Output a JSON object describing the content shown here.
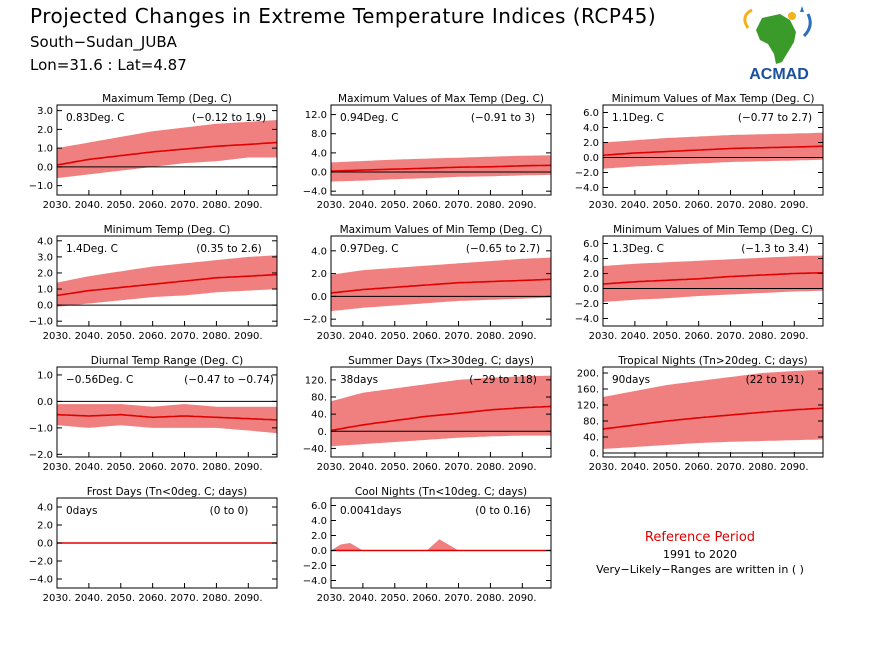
{
  "header": {
    "title": "Projected Changes in Extreme Temperature Indices (RCP45)",
    "subtitle": "South−Sudan_JUBA",
    "location": "Lon=31.6 : Lat=4.87"
  },
  "logo": {
    "text": "ACMAD",
    "icon": "africa-map-logo"
  },
  "reference": {
    "title": "Reference Period",
    "years": "1991 to 2020",
    "note": "Very−Likely−Ranges are written in ( )"
  },
  "colors": {
    "band": "#f08080",
    "line": "#e00000",
    "zero": "#000000"
  },
  "chart_data": [
    {
      "type": "area",
      "title": "Maximum Temp (Deg. C)",
      "value_text": "0.83Deg. C",
      "range_text": "(−0.12 to 1.9)",
      "ylim": [
        -1.5,
        3.3
      ],
      "yticks": [
        -1,
        0,
        1,
        2,
        3
      ],
      "ytick_labels": [
        "−1.0",
        "0.0",
        "1.0",
        "2.0",
        "3.0"
      ],
      "xticks": [
        2030,
        2040,
        2050,
        2060,
        2070,
        2080,
        2090
      ],
      "xtick_labels": [
        "2030.",
        "2040.",
        "2050.",
        "2060.",
        "2070.",
        "2080.",
        "2090."
      ],
      "x": [
        2030,
        2040,
        2050,
        2060,
        2070,
        2080,
        2090,
        2099
      ],
      "median": [
        0.1,
        0.4,
        0.6,
        0.8,
        0.95,
        1.1,
        1.2,
        1.3
      ],
      "low": [
        -0.6,
        -0.4,
        -0.2,
        0.0,
        0.2,
        0.3,
        0.5,
        0.5
      ],
      "high": [
        1.0,
        1.3,
        1.6,
        1.9,
        2.1,
        2.3,
        2.4,
        2.5
      ]
    },
    {
      "type": "area",
      "title": "Maximum Values of Max Temp (Deg. C)",
      "value_text": "0.94Deg. C",
      "range_text": "(−0.91 to 3)",
      "ylim": [
        -4.8,
        14
      ],
      "yticks": [
        -4,
        0,
        4,
        8,
        12
      ],
      "ytick_labels": [
        "−4.0",
        "0.0",
        "4.0",
        "8.0",
        "12.0"
      ],
      "xticks": [
        2030,
        2040,
        2050,
        2060,
        2070,
        2080,
        2090
      ],
      "xtick_labels": [
        "2030.",
        "2040.",
        "2050.",
        "2060.",
        "2070.",
        "2080.",
        "2090."
      ],
      "x": [
        2030,
        2040,
        2050,
        2060,
        2070,
        2080,
        2090,
        2099
      ],
      "median": [
        0.2,
        0.4,
        0.6,
        0.8,
        1.0,
        1.1,
        1.3,
        1.4
      ],
      "low": [
        -2.0,
        -1.8,
        -1.5,
        -1.3,
        -1.0,
        -0.9,
        -0.7,
        -0.6
      ],
      "high": [
        2.0,
        2.3,
        2.6,
        2.8,
        3.0,
        3.2,
        3.4,
        3.5
      ]
    },
    {
      "type": "area",
      "title": "Minimum Values of Max Temp (Deg. C)",
      "value_text": "1.1Deg. C",
      "range_text": "(−0.77 to 2.7)",
      "ylim": [
        -5,
        7
      ],
      "yticks": [
        -4,
        -2,
        0,
        2,
        4,
        6
      ],
      "ytick_labels": [
        "−4.0",
        "−2.0",
        "0.0",
        "2.0",
        "4.0",
        "6.0"
      ],
      "xticks": [
        2030,
        2040,
        2050,
        2060,
        2070,
        2080,
        2090
      ],
      "xtick_labels": [
        "2030.",
        "2040.",
        "2050.",
        "2060.",
        "2070.",
        "2080.",
        "2090."
      ],
      "x": [
        2030,
        2040,
        2050,
        2060,
        2070,
        2080,
        2090,
        2099
      ],
      "median": [
        0.3,
        0.6,
        0.8,
        1.0,
        1.2,
        1.3,
        1.4,
        1.5
      ],
      "low": [
        -1.5,
        -1.2,
        -1.0,
        -0.8,
        -0.6,
        -0.5,
        -0.4,
        -0.3
      ],
      "high": [
        2.0,
        2.3,
        2.6,
        2.8,
        3.0,
        3.1,
        3.2,
        3.3
      ]
    },
    {
      "type": "area",
      "title": "Minimum Temp (Deg. C)",
      "value_text": "1.4Deg. C",
      "range_text": "(0.35 to 2.6)",
      "ylim": [
        -1.3,
        4.3
      ],
      "yticks": [
        -1,
        0,
        1,
        2,
        3,
        4
      ],
      "ytick_labels": [
        "−1.0",
        "0.0",
        "1.0",
        "2.0",
        "3.0",
        "4.0"
      ],
      "xticks": [
        2030,
        2040,
        2050,
        2060,
        2070,
        2080,
        2090
      ],
      "xtick_labels": [
        "2030.",
        "2040.",
        "2050.",
        "2060.",
        "2070.",
        "2080.",
        "2090."
      ],
      "x": [
        2030,
        2040,
        2050,
        2060,
        2070,
        2080,
        2090,
        2099
      ],
      "median": [
        0.6,
        0.9,
        1.1,
        1.3,
        1.5,
        1.7,
        1.8,
        1.9
      ],
      "low": [
        -0.1,
        0.1,
        0.3,
        0.5,
        0.6,
        0.8,
        0.9,
        1.0
      ],
      "high": [
        1.4,
        1.8,
        2.1,
        2.4,
        2.6,
        2.8,
        3.0,
        3.1
      ]
    },
    {
      "type": "area",
      "title": "Maximum Values of Min Temp (Deg. C)",
      "value_text": "0.97Deg. C",
      "range_text": "(−0.65 to 2.7)",
      "ylim": [
        -2.6,
        5.3
      ],
      "yticks": [
        -2,
        0,
        2,
        4
      ],
      "ytick_labels": [
        "−2.0",
        "0.0",
        "2.0",
        "4.0"
      ],
      "xticks": [
        2030,
        2040,
        2050,
        2060,
        2070,
        2080,
        2090
      ],
      "xtick_labels": [
        "2030.",
        "2040.",
        "2050.",
        "2060.",
        "2070.",
        "2080.",
        "2090."
      ],
      "x": [
        2030,
        2040,
        2050,
        2060,
        2070,
        2080,
        2090,
        2099
      ],
      "median": [
        0.3,
        0.6,
        0.8,
        1.0,
        1.2,
        1.3,
        1.4,
        1.5
      ],
      "low": [
        -1.3,
        -1.0,
        -0.8,
        -0.6,
        -0.4,
        -0.3,
        -0.2,
        -0.1
      ],
      "high": [
        1.9,
        2.3,
        2.5,
        2.7,
        2.9,
        3.1,
        3.3,
        3.4
      ]
    },
    {
      "type": "area",
      "title": "Minimum Values of Min Temp (Deg. C)",
      "value_text": "1.3Deg. C",
      "range_text": "(−1.3 to 3.4)",
      "ylim": [
        -5,
        7
      ],
      "yticks": [
        -4,
        -2,
        0,
        2,
        4,
        6
      ],
      "ytick_labels": [
        "−4.0",
        "−2.0",
        "0.0",
        "2.0",
        "4.0",
        "6.0"
      ],
      "xticks": [
        2030,
        2040,
        2050,
        2060,
        2070,
        2080,
        2090
      ],
      "xtick_labels": [
        "2030.",
        "2040.",
        "2050.",
        "2060.",
        "2070.",
        "2080.",
        "2090."
      ],
      "x": [
        2030,
        2040,
        2050,
        2060,
        2070,
        2080,
        2090,
        2099
      ],
      "median": [
        0.6,
        0.9,
        1.1,
        1.3,
        1.6,
        1.8,
        2.0,
        2.1
      ],
      "low": [
        -1.8,
        -1.5,
        -1.3,
        -1.0,
        -0.8,
        -0.6,
        -0.4,
        -0.3
      ],
      "high": [
        3.0,
        3.3,
        3.5,
        3.7,
        3.9,
        4.1,
        4.3,
        4.4
      ]
    },
    {
      "type": "area",
      "title": "Diurnal Temp Range (Deg. C)",
      "value_text": "−0.56Deg. C",
      "range_text": "(−0.47 to −0.74)",
      "ylim": [
        -2.1,
        1.3
      ],
      "yticks": [
        -2,
        -1,
        0,
        1
      ],
      "ytick_labels": [
        "−2.0",
        "−1.0",
        "0.0",
        "1.0"
      ],
      "xticks": [
        2030,
        2040,
        2050,
        2060,
        2070,
        2080,
        2090
      ],
      "xtick_labels": [
        "2030.",
        "2040.",
        "2050.",
        "2060.",
        "2070.",
        "2080.",
        "2090."
      ],
      "x": [
        2030,
        2040,
        2050,
        2060,
        2070,
        2080,
        2090,
        2099
      ],
      "median": [
        -0.5,
        -0.55,
        -0.5,
        -0.6,
        -0.55,
        -0.6,
        -0.65,
        -0.7
      ],
      "low": [
        -0.9,
        -1.0,
        -0.9,
        -1.0,
        -1.0,
        -1.0,
        -1.1,
        -1.2
      ],
      "high": [
        -0.1,
        -0.1,
        -0.1,
        -0.2,
        -0.1,
        -0.2,
        -0.2,
        -0.2
      ]
    },
    {
      "type": "area",
      "title": "Summer Days (Tx>30deg. C; days)",
      "value_text": "38days",
      "range_text": "(−29 to 118)",
      "ylim": [
        -60,
        150
      ],
      "yticks": [
        -40,
        0,
        40,
        80,
        120
      ],
      "ytick_labels": [
        "−40.",
        "0.",
        "40.",
        "80.",
        "120."
      ],
      "xticks": [
        2030,
        2040,
        2050,
        2060,
        2070,
        2080,
        2090
      ],
      "xtick_labels": [
        "2030.",
        "2040.",
        "2050.",
        "2060.",
        "2070.",
        "2080.",
        "2090."
      ],
      "x": [
        2030,
        2040,
        2050,
        2060,
        2070,
        2080,
        2090,
        2099
      ],
      "median": [
        2,
        15,
        25,
        35,
        42,
        50,
        55,
        58
      ],
      "low": [
        -35,
        -30,
        -25,
        -20,
        -15,
        -12,
        -10,
        -10
      ],
      "high": [
        70,
        90,
        100,
        110,
        120,
        125,
        128,
        130
      ]
    },
    {
      "type": "area",
      "title": "Tropical Nights (Tn>20deg. C; days)",
      "value_text": "90days",
      "range_text": "(22 to 191)",
      "ylim": [
        -10,
        215
      ],
      "yticks": [
        0,
        40,
        80,
        120,
        160,
        200
      ],
      "ytick_labels": [
        "0.",
        "40.",
        "80.",
        "120.",
        "160.",
        "200."
      ],
      "xticks": [
        2030,
        2040,
        2050,
        2060,
        2070,
        2080,
        2090
      ],
      "xtick_labels": [
        "2030.",
        "2040.",
        "2050.",
        "2060.",
        "2070.",
        "2080.",
        "2090."
      ],
      "x": [
        2030,
        2040,
        2050,
        2060,
        2070,
        2080,
        2090,
        2099
      ],
      "median": [
        60,
        70,
        80,
        88,
        95,
        102,
        108,
        112
      ],
      "low": [
        10,
        15,
        20,
        25,
        28,
        30,
        32,
        34
      ],
      "high": [
        140,
        155,
        170,
        180,
        190,
        200,
        205,
        208
      ]
    },
    {
      "type": "area",
      "title": "Frost Days (Tn<0deg. C; days)",
      "value_text": "0days",
      "range_text": "(0 to 0)",
      "ylim": [
        -5,
        5
      ],
      "yticks": [
        -4,
        -2,
        0,
        2,
        4
      ],
      "ytick_labels": [
        "−4.0",
        "−2.0",
        "0.0",
        "2.0",
        "4.0"
      ],
      "xticks": [
        2030,
        2040,
        2050,
        2060,
        2070,
        2080,
        2090
      ],
      "xtick_labels": [
        "2030.",
        "2040.",
        "2050.",
        "2060.",
        "2070.",
        "2080.",
        "2090."
      ],
      "x": [
        2030,
        2099
      ],
      "median": [
        0,
        0
      ],
      "low": [
        0,
        0
      ],
      "high": [
        0,
        0
      ]
    },
    {
      "type": "area",
      "title": "Cool Nights (Tn<10deg. C; days)",
      "value_text": "0.0041days",
      "range_text": "(0 to 0.16)",
      "ylim": [
        -5,
        7
      ],
      "yticks": [
        -4,
        -2,
        0,
        2,
        4,
        6
      ],
      "ytick_labels": [
        "−4.0",
        "−2.0",
        "0.0",
        "2.0",
        "4.0",
        "6.0"
      ],
      "xticks": [
        2030,
        2040,
        2050,
        2060,
        2070,
        2080,
        2090
      ],
      "xtick_labels": [
        "2030.",
        "2040.",
        "2050.",
        "2060.",
        "2070.",
        "2080.",
        "2090."
      ],
      "x": [
        2030,
        2033,
        2036,
        2040,
        2060,
        2064,
        2070,
        2099
      ],
      "median": [
        0,
        0,
        0,
        0,
        0,
        0,
        0,
        0
      ],
      "low": [
        0,
        0,
        0,
        0,
        0,
        0,
        0,
        0
      ],
      "high": [
        0,
        0.8,
        1.0,
        0,
        0,
        1.5,
        0,
        0
      ]
    }
  ]
}
